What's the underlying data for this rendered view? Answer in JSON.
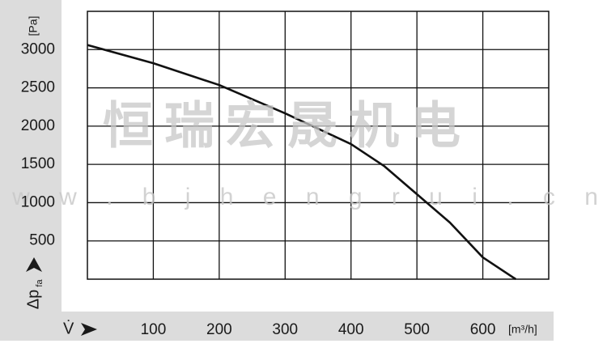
{
  "chart_data": {
    "type": "line",
    "ylabel": "Δp",
    "ylabel_sub": "fa",
    "yunit": "[Pa]",
    "xlabel": "V̇",
    "xunit": "[m³/h]",
    "watermark": "恒瑞宏晟机电",
    "watermark_url": "w w w . b j h e n g r u i . c n",
    "x": [
      0,
      100,
      200,
      300,
      400,
      450,
      500,
      550,
      600,
      650
    ],
    "series": [
      {
        "name": "curve",
        "color": "#111111",
        "values": [
          3060,
          2822,
          2537,
          2167,
          1765,
          1480,
          1110,
          740,
          285,
          0
        ]
      }
    ],
    "xlim": [
      0,
      700
    ],
    "ylim": [
      0,
      3500
    ],
    "xticks": [
      100,
      200,
      300,
      400,
      500,
      600
    ],
    "yticks": [
      500,
      1000,
      1500,
      2000,
      2500,
      3000
    ],
    "grid": true
  }
}
